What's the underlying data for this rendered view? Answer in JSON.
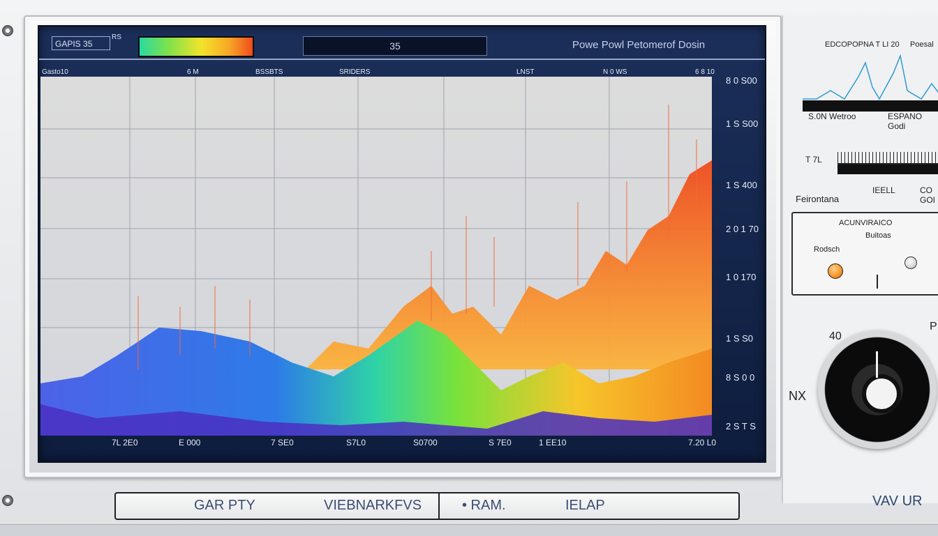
{
  "screen": {
    "label_box": "GAPIS 35",
    "label_tiny": "RS",
    "readout": "35",
    "title": "Powe Powl Petomerof Dosin",
    "top_ticks": [
      "Gasto10",
      "6 M",
      "BSSBTS",
      "SRIDERS",
      "LNST",
      "N 0 WS",
      "6 8 10"
    ],
    "x_ticks": [
      "7L 2E0",
      "E 000",
      "7 SE0",
      "S7L0",
      "S0700",
      "S 7E0",
      "1 EE10",
      "7.20 L0"
    ],
    "y_ticks": [
      "8 0 S00",
      "1 S S00",
      "1 S 400",
      "2 0 1 70",
      "1 0 170",
      "1 S S0",
      "8 S 0 0",
      "2 S T S"
    ]
  },
  "right_panel": {
    "header_left": "EDCOPOPNA T LI 20",
    "header_right": "Poesal",
    "mini_a": "S.0N Wetroo",
    "mini_b": "ESPANO Godi",
    "ruler_label": "T 7L",
    "field_label": "Feirontana",
    "fields_b": "IEELL",
    "fields_c": "CO GOI",
    "box_top": "ACUNVIRAICO",
    "box_mid": "Buitoas",
    "box_label": "Rodsch",
    "knob_left": "40",
    "knob_right": "P",
    "side_text": "NX"
  },
  "footer": {
    "a": "GAR PTY",
    "b": "VIEBNARKFVS",
    "c": "• RAM.",
    "d": "IELAP",
    "right": "VAV UR"
  },
  "colors": {
    "screen_bg": "#13254a",
    "accent_orange": "#f7932a"
  }
}
